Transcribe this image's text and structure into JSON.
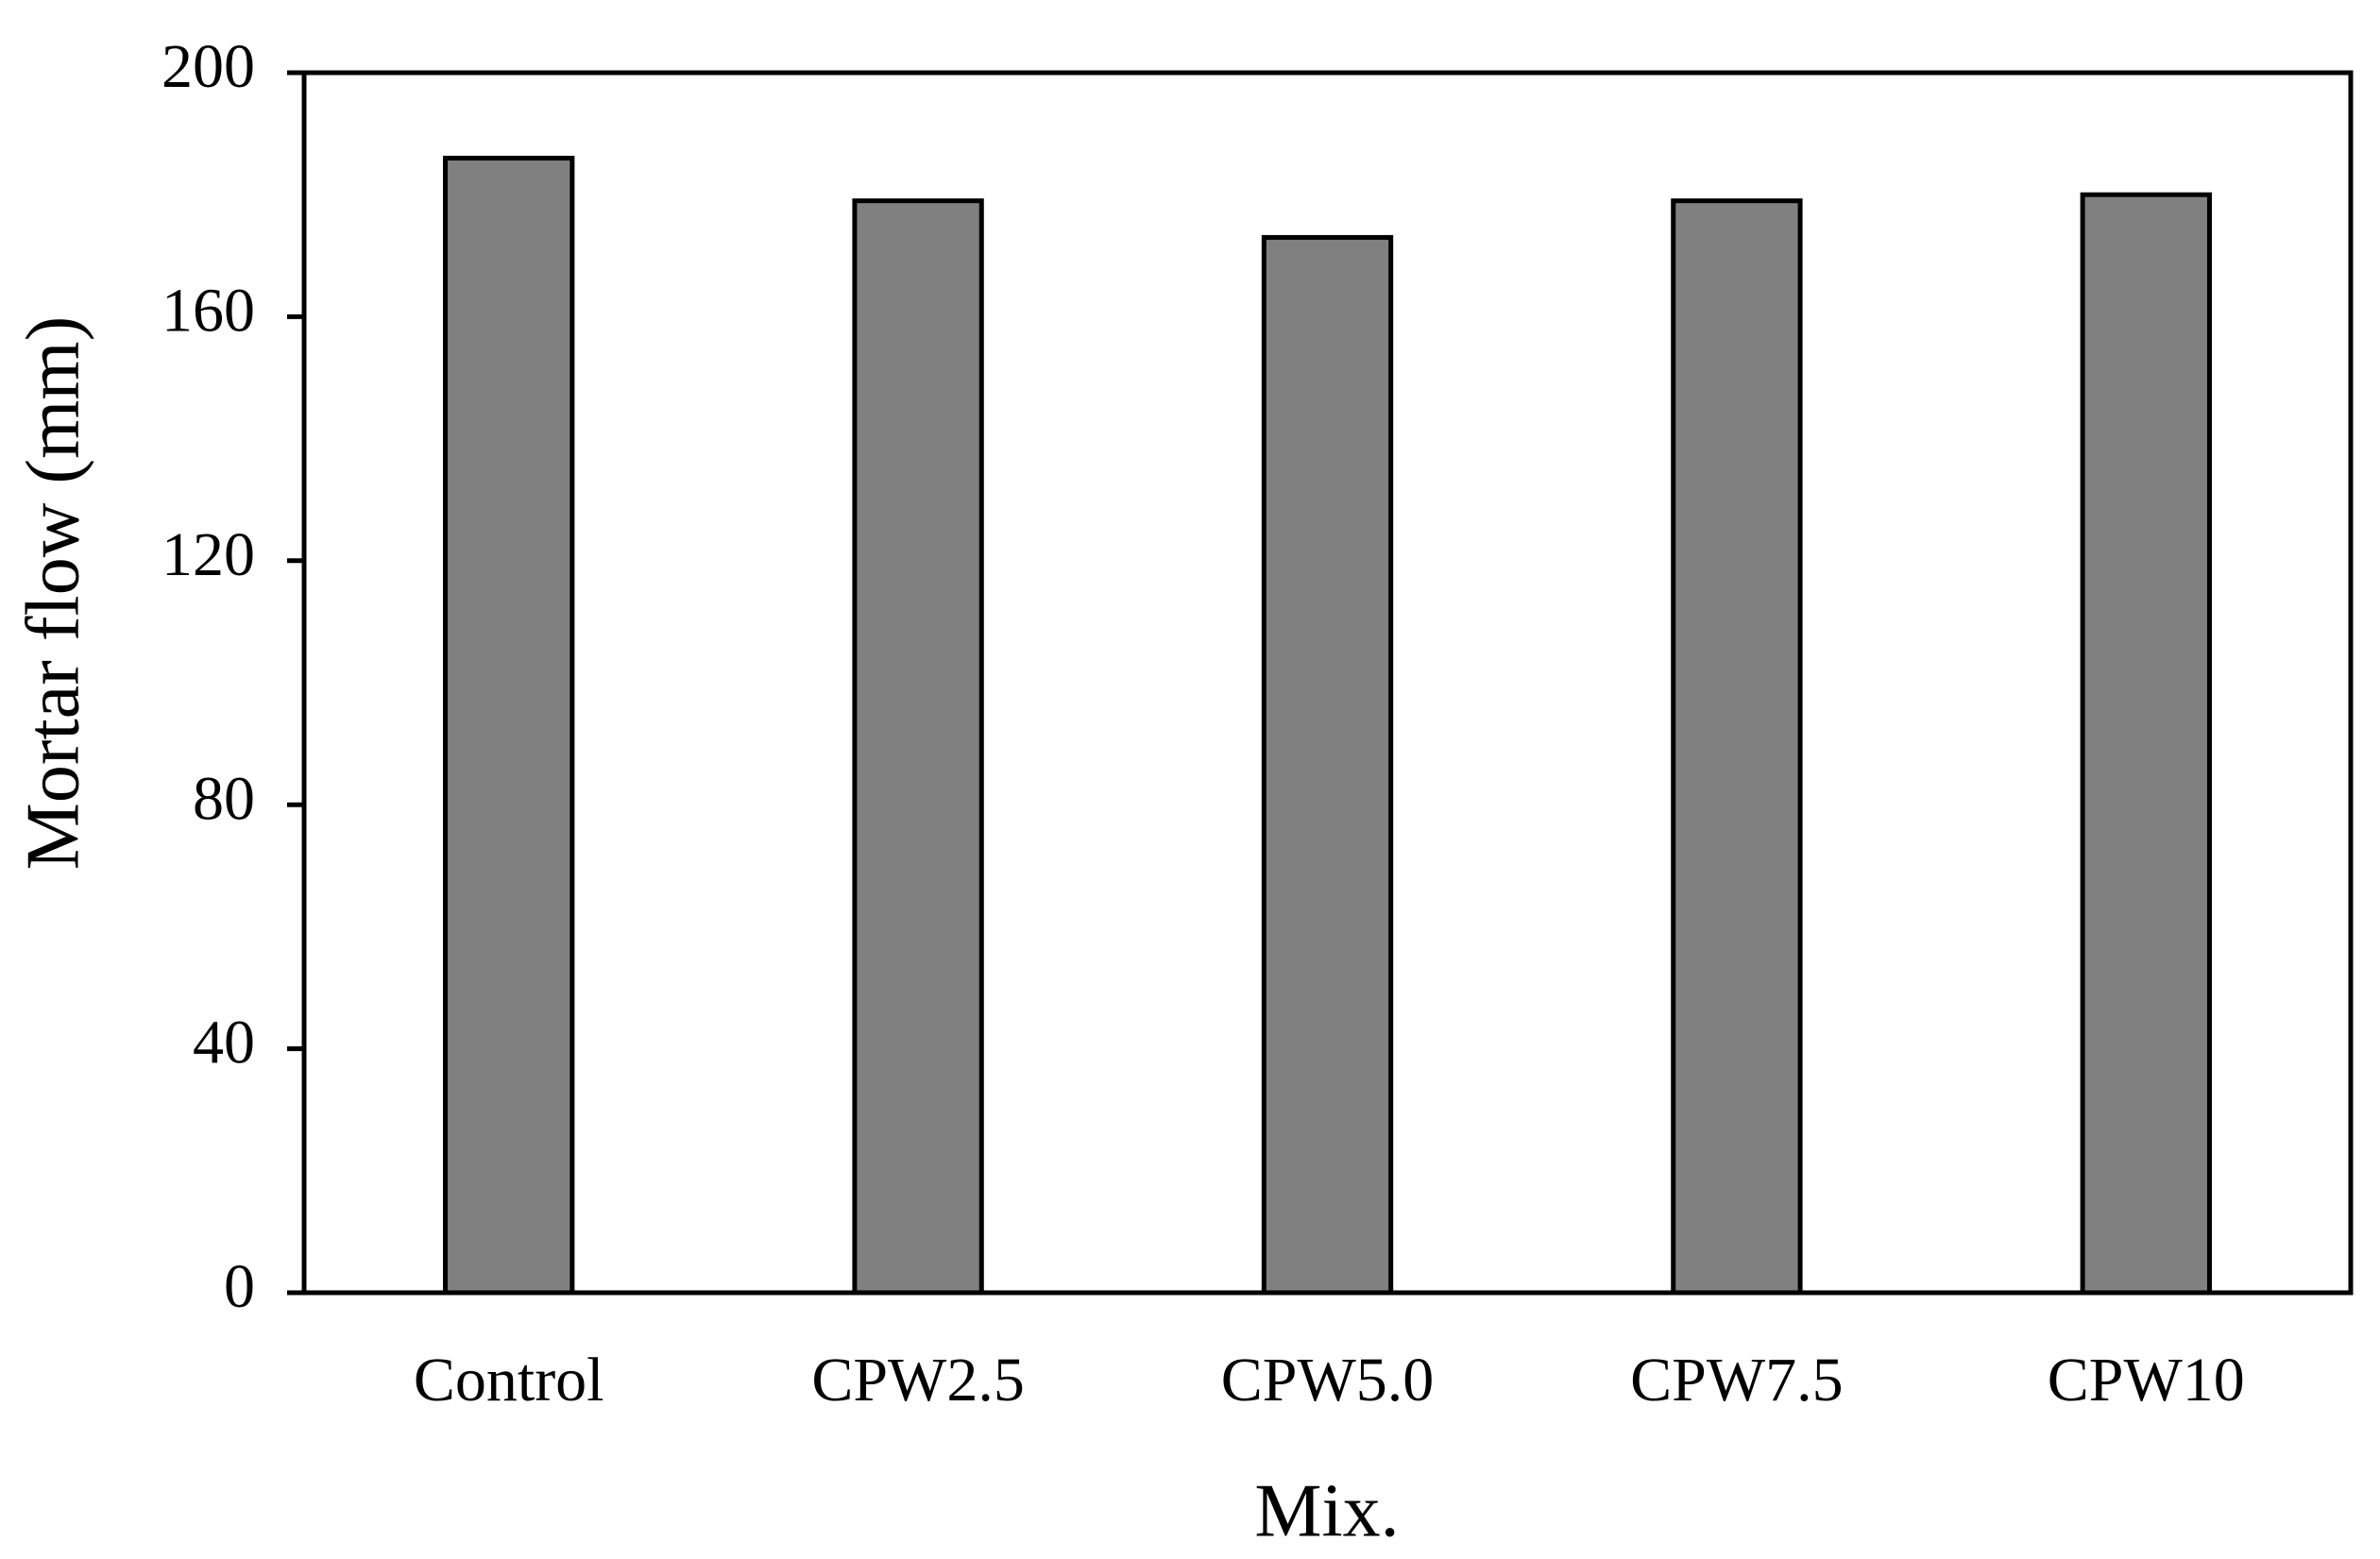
{
  "chart_data": {
    "type": "bar",
    "categories": [
      "Control",
      "CPW2.5",
      "CPW5.0",
      "CPW7.5",
      "CPW10"
    ],
    "values": [
      186,
      179,
      173,
      179,
      180
    ],
    "color": "#808080",
    "x_label": "Mix.",
    "y_label": "Mortar flow (mm)",
    "ylim": [
      0,
      200
    ],
    "yticks": [
      0,
      40,
      80,
      120,
      160,
      200
    ],
    "grid": false
  }
}
